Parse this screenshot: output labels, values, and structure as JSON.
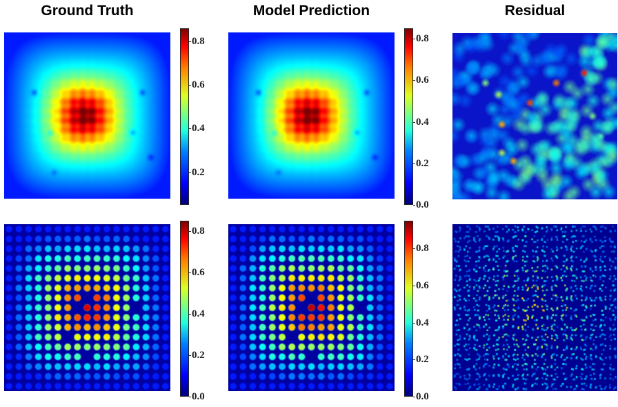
{
  "chart_data": [
    {
      "type": "heatmap",
      "title": "Ground Truth",
      "row": 1,
      "colormap": "jet",
      "colorbar": {
        "ticks": [
          "0.2",
          "0.4",
          "0.6",
          "0.8"
        ],
        "range": [
          0.05,
          0.86
        ]
      }
    },
    {
      "type": "heatmap",
      "title": "Model Prediction",
      "row": 1,
      "colormap": "jet",
      "colorbar": {
        "ticks": [
          "0.0",
          "0.2",
          "0.4",
          "0.6",
          "0.8"
        ],
        "range": [
          0.0,
          0.85
        ]
      }
    },
    {
      "type": "heatmap",
      "title": "Residual",
      "row": 1,
      "colormap": "jet"
    },
    {
      "type": "heatmap",
      "title": "",
      "row": 2,
      "colormap": "jet",
      "colorbar": {
        "ticks": [
          "0.0",
          "0.2",
          "0.4",
          "0.6",
          "0.8"
        ],
        "range": [
          0.0,
          0.85
        ]
      }
    },
    {
      "type": "heatmap",
      "title": "",
      "row": 2,
      "colormap": "jet",
      "colorbar": {
        "ticks": [
          "0.0",
          "0.2",
          "0.4",
          "0.6",
          "0.8"
        ],
        "range": [
          0.0,
          0.95
        ]
      }
    },
    {
      "type": "heatmap",
      "title": "",
      "row": 2,
      "colormap": "jet"
    }
  ],
  "titles": {
    "col1": "Ground Truth",
    "col2": "Model Prediction",
    "col3": "Residual"
  }
}
